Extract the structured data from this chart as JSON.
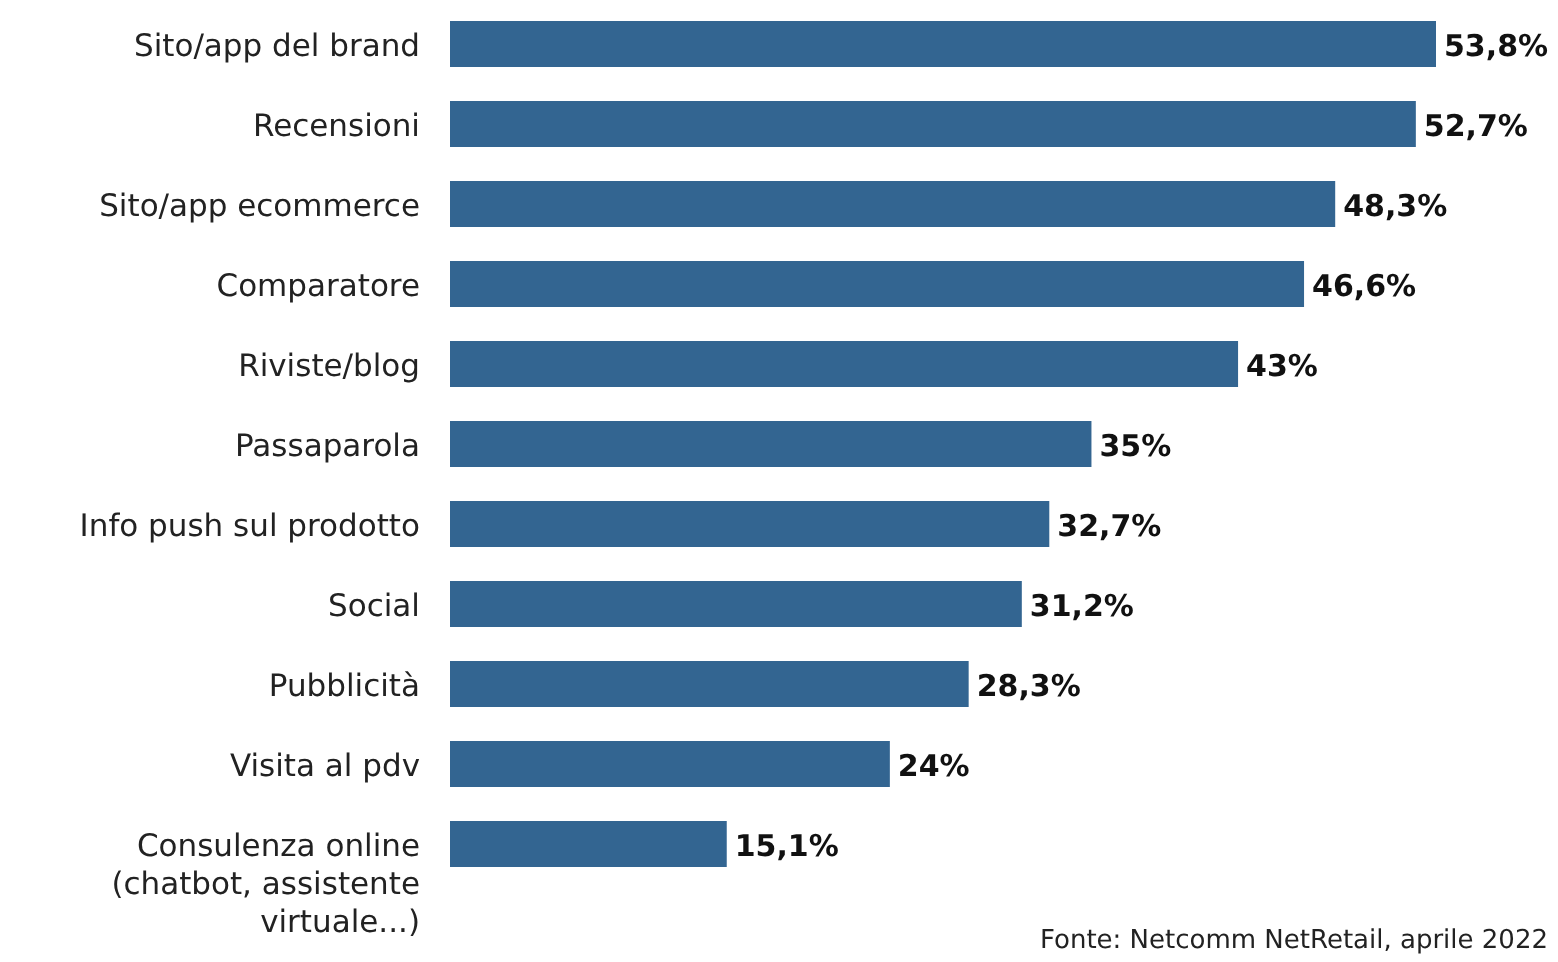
{
  "chart_data": {
    "type": "bar",
    "orientation": "horizontal",
    "categories": [
      "Sito/app del brand",
      "Recensioni",
      "Sito/app ecommerce",
      "Comparatore",
      "Riviste/blog",
      "Passaparola",
      "Info push sul prodotto",
      "Social",
      "Pubblicità",
      "Visita al pdv",
      "Consulenza online (chatbot, assistente virtuale...)"
    ],
    "values": [
      53.8,
      52.7,
      48.3,
      46.6,
      43,
      35,
      32.7,
      31.2,
      28.3,
      24,
      15.1
    ],
    "value_labels": [
      "53,8%",
      "52,7%",
      "48,3%",
      "46,6%",
      "43%",
      "35%",
      "32,7%",
      "31,2%",
      "28,3%",
      "24%",
      "15,1%"
    ],
    "color": "#336591",
    "annotations": [
      "Fonte: Netcomm NetRetail, aprile 2022"
    ]
  }
}
